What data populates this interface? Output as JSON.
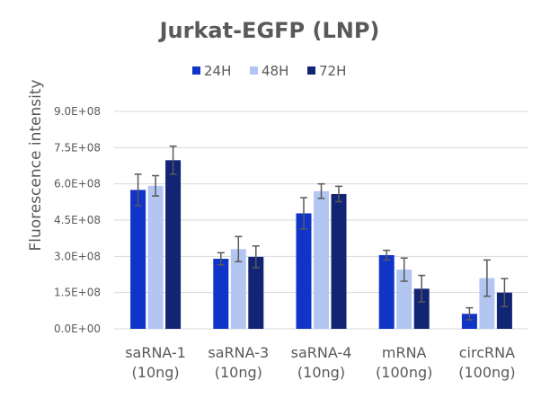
{
  "chart_data": {
    "type": "bar",
    "title": "Jurkat-EGFP (LNP)",
    "ylabel": "Fluorescence intensity",
    "xlabel": "",
    "ylim": [
      0,
      900000000
    ],
    "yticks": [
      0,
      150000000,
      300000000,
      450000000,
      600000000,
      750000000,
      900000000
    ],
    "ytick_labels": [
      "0.0E+00",
      "1.5E+08",
      "3.0E+08",
      "4.5E+08",
      "6.0E+08",
      "7.5E+08",
      "9.0E+08"
    ],
    "categories": [
      [
        "saRNA-1",
        "(10ng)"
      ],
      [
        "saRNA-3",
        "(10ng)"
      ],
      [
        "saRNA-4",
        "(10ng)"
      ],
      [
        "mRNA",
        "(100ng)"
      ],
      [
        "circRNA",
        "(100ng)"
      ]
    ],
    "series": [
      {
        "name": "24H",
        "color": "#1034c8",
        "values": [
          575000000,
          290000000,
          478000000,
          305000000,
          62000000
        ],
        "errors": [
          65000000,
          25000000,
          65000000,
          20000000,
          25000000
        ]
      },
      {
        "name": "48H",
        "color": "#b3c6f2",
        "values": [
          592000000,
          330000000,
          570000000,
          245000000,
          210000000
        ],
        "errors": [
          42000000,
          52000000,
          30000000,
          48000000,
          75000000
        ]
      },
      {
        "name": "72H",
        "color": "#122474",
        "values": [
          698000000,
          298000000,
          558000000,
          166000000,
          150000000
        ],
        "errors": [
          58000000,
          45000000,
          32000000,
          55000000,
          58000000
        ]
      }
    ],
    "grid": true,
    "legend_position": "top"
  }
}
